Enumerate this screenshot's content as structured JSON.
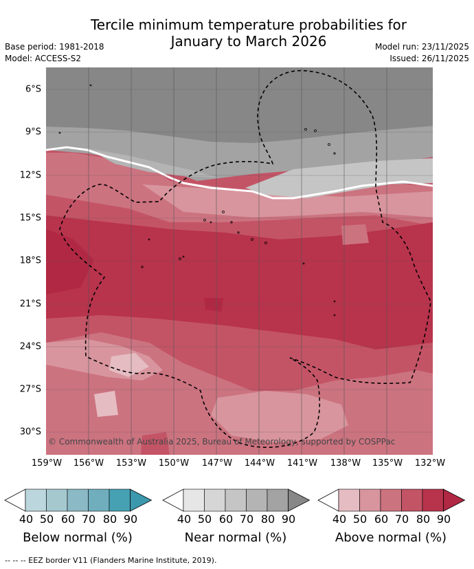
{
  "title_line1": "Tercile minimum temperature probabilities for",
  "title_line2": "January to March 2026",
  "base_period": "Base period: 1981-2018",
  "model": "Model: ACCESS-S2",
  "model_run": "Model run: 23/11/2025",
  "issued": "Issued: 26/11/2025",
  "map": {
    "lat_range": [
      -31.5,
      -4.5
    ],
    "lon_range": [
      -159,
      -132
    ],
    "lat_labels": [
      "6°S",
      "9°S",
      "12°S",
      "15°S",
      "18°S",
      "21°S",
      "24°S",
      "27°S",
      "30°S"
    ],
    "lon_labels": [
      "159°W",
      "156°W",
      "153°W",
      "150°W",
      "147°W",
      "144°W",
      "141°W",
      "138°W",
      "135°W",
      "132°W"
    ],
    "copyright": "© Commonwealth of Australia 2025, Bureau of Meteorology, supported by COSPPac"
  },
  "colorbars": [
    {
      "name": "below",
      "label": "Below normal (%)",
      "ticks": [
        "40",
        "50",
        "60",
        "70",
        "80",
        "90"
      ],
      "colors": [
        "#bcd6dd",
        "#a5c8cf",
        "#8bb9c5",
        "#70aebe",
        "#46a1b3",
        "#3c98ac"
      ]
    },
    {
      "name": "near",
      "label": "Near normal (%)",
      "ticks": [
        "40",
        "50",
        "60",
        "70",
        "80",
        "90"
      ],
      "colors": [
        "#e6e6e6",
        "#d6d6d6",
        "#c5c5c5",
        "#b4b4b4",
        "#a3a3a3",
        "#878787"
      ]
    },
    {
      "name": "above",
      "label": "Above normal (%)",
      "ticks": [
        "40",
        "50",
        "60",
        "70",
        "80",
        "90"
      ],
      "colors": [
        "#e5bcc2",
        "#d8959e",
        "#cc7380",
        "#c35466",
        "#b8334c",
        "#b02843"
      ]
    }
  ],
  "eez_note": "--  --  -- EEZ border V11 (Flanders Marine Institute, 2019)."
}
